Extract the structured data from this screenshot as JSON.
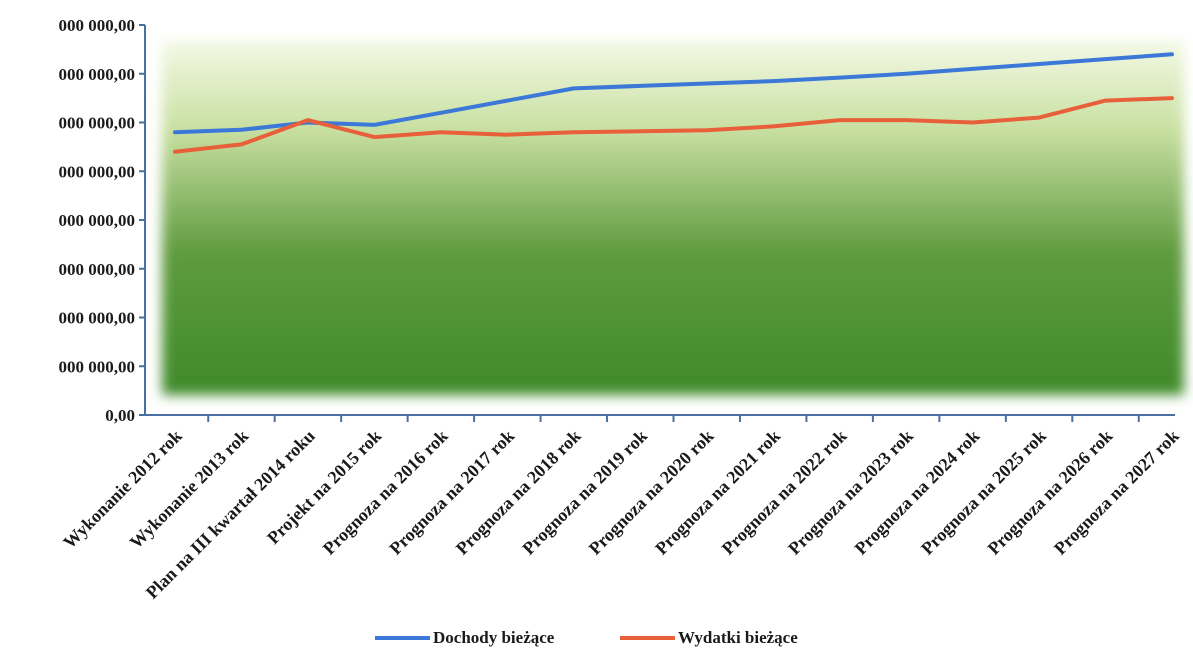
{
  "chart_data": {
    "type": "line",
    "title": "",
    "xlabel": "",
    "ylabel": "",
    "categories": [
      "Wykonanie 2012 rok",
      "Wykonanie 2013 rok",
      "Plan na III kwartał 2014 roku",
      "Projekt na 2015 rok",
      "Prognoza na 2016 rok",
      "Prognoza na 2017 rok",
      "Prognoza na 2018 rok",
      "Prognoza na 2019 rok",
      "Prognoza na 2020 rok",
      "Prognoza na 2021 rok",
      "Prognoza na 2022 rok",
      "Prognoza na 2023 rok",
      "Prognoza na 2024 rok",
      "Prognoza na 2025 rok",
      "Prognoza na 2026 rok",
      "Prognoza na 2027 rok"
    ],
    "y_tick_labels": [
      "0,00",
      "000 000,00",
      "000 000,00",
      "000 000,00",
      "000 000,00",
      "000 000,00",
      "000 000,00",
      "000 000,00",
      "000 000,00"
    ],
    "y_tick_count": 9,
    "ylim": [
      0,
      8
    ],
    "grid": false,
    "legend_position": "bottom",
    "series": [
      {
        "name": "Dochody bieżące",
        "color": "#3b78d8",
        "values": [
          5.8,
          5.85,
          6.0,
          5.95,
          6.2,
          6.45,
          6.7,
          6.75,
          6.8,
          6.85,
          6.92,
          7.0,
          7.1,
          7.2,
          7.3,
          7.4
        ]
      },
      {
        "name": "Wydatki bieżące",
        "color": "#e8603a",
        "values": [
          5.4,
          5.55,
          6.05,
          5.7,
          5.8,
          5.75,
          5.8,
          5.82,
          5.84,
          5.92,
          6.05,
          6.05,
          6.0,
          6.1,
          6.45,
          6.5
        ]
      }
    ]
  }
}
